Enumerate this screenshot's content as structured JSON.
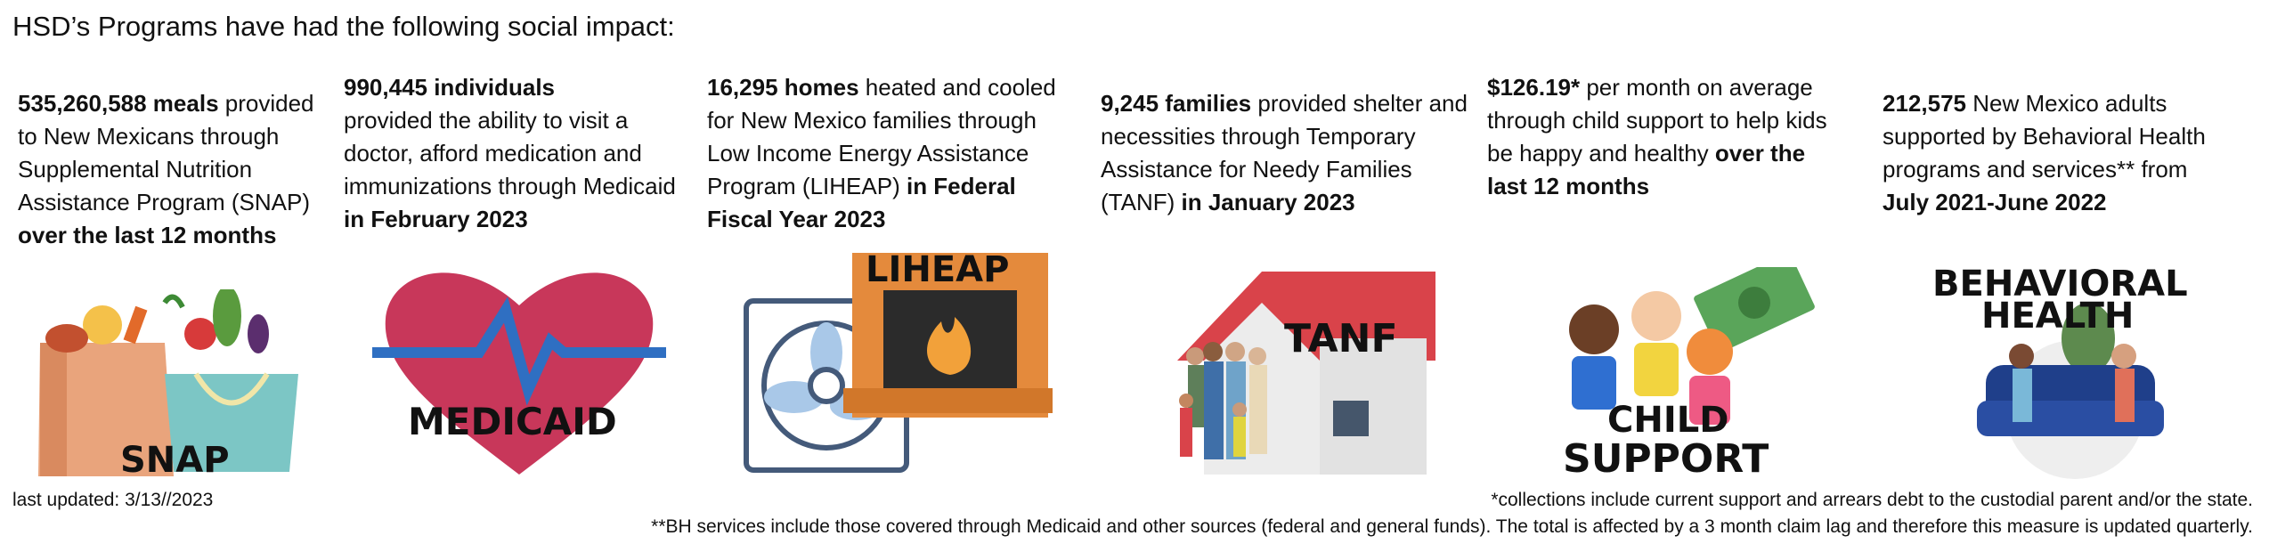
{
  "page": {
    "title": "HSD’s Programs have had the following social impact:"
  },
  "programs": [
    {
      "id": "snap",
      "bold_value": "535,260,588 meals",
      "text": "provided to New Mexicans through Supplemental Nutrition Assistance Program (SNAP)",
      "bold_period": "over the last 12 months",
      "graphic_label": "SNAP",
      "icon": "grocery-bag-icon"
    },
    {
      "id": "medicaid",
      "bold_value": "990,445 individuals",
      "text": "provided the ability to visit a doctor, afford medication and immunizations through Medicaid",
      "bold_period": "in February 2023",
      "graphic_label": "MEDICAID",
      "icon": "heart-icon"
    },
    {
      "id": "liheap",
      "bold_value": "16,295 homes",
      "text": "heated and cooled for New Mexico families through Low Income Energy Assistance Program (LIHEAP)",
      "bold_period": "in Federal Fiscal Year 2023",
      "graphic_label": "LIHEAP",
      "icon": "fireplace-fan-icon"
    },
    {
      "id": "tanf",
      "bold_value": "9,245 families",
      "text": "provided shelter and necessities through Temporary Assistance for Needy Families (TANF)",
      "bold_period": "in January 2023",
      "graphic_label": "TANF",
      "icon": "house-family-icon"
    },
    {
      "id": "child-support",
      "bold_value": "$126.19*",
      "text": "per month on average through child support to help kids be happy and healthy",
      "bold_period": "over the last 12 months",
      "graphic_label_line1": "CHILD",
      "graphic_label_line2": "SUPPORT",
      "icon": "kids-money-icon"
    },
    {
      "id": "behavioral-health",
      "bold_value": "212,575",
      "text": "New Mexico adults supported by Behavioral Health programs and services** from",
      "bold_period": "July 2021-June 2022",
      "graphic_label_line1": "BEHAVIORAL",
      "graphic_label_line2": "HEALTH",
      "icon": "therapy-session-icon"
    }
  ],
  "footer": {
    "last_updated": "last updated: 3/13//2023",
    "note1": "*collections include current support and arrears debt to the custodial parent and/or the state.",
    "note2": "**BH services include those covered through Medicaid and other sources (federal and general funds). The total is affected by a 3 month claim lag and therefore this measure is updated quarterly."
  },
  "colors": {
    "heart": "#c8375a",
    "pulse": "#2f6fc2",
    "brick": "#e48a3c",
    "roof": "#d9434a",
    "bag_tan": "#e9a47c",
    "bag_teal": "#7cc6c5",
    "couch": "#1f3f8a"
  }
}
